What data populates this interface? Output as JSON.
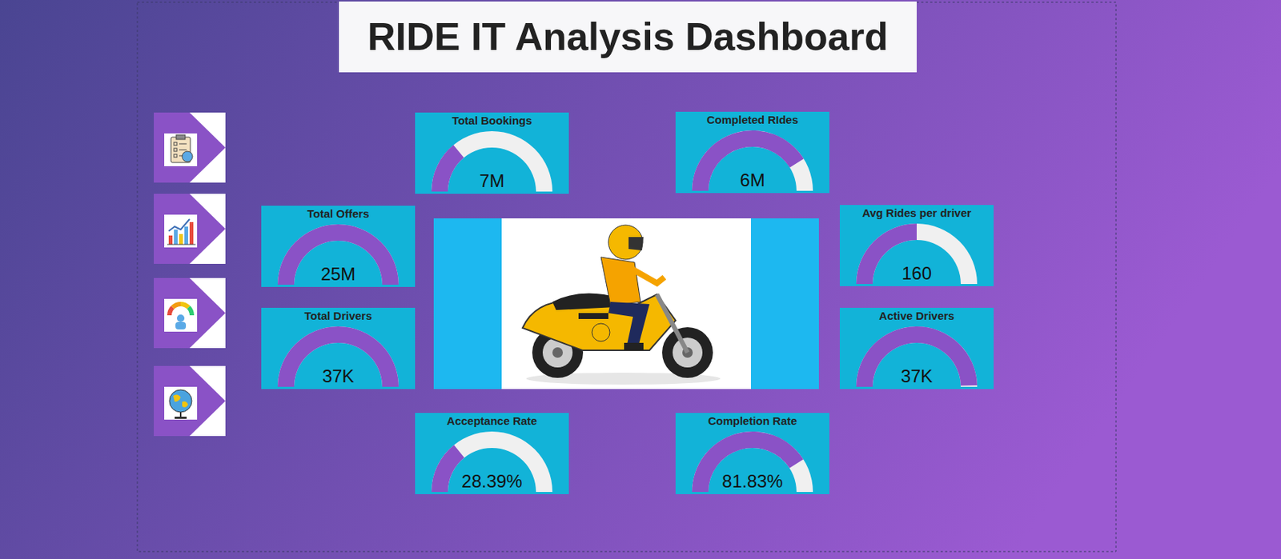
{
  "title": "RIDE IT Analysis Dashboard",
  "chart_data": [
    {
      "type": "gauge",
      "title": "Total Bookings",
      "values": [
        7000000
      ],
      "value_labels": [
        "7M"
      ],
      "ylim": [
        0,
        25000000
      ],
      "tick_labels": false,
      "data_labels": true,
      "color": "#8a52c6"
    },
    {
      "type": "gauge",
      "title": "Completed RIdes",
      "values": [
        6000000
      ],
      "value_labels": [
        "6M"
      ],
      "ylim": [
        0,
        7300000
      ],
      "tick_labels": false,
      "data_labels": true,
      "color": "#8a52c6"
    },
    {
      "type": "gauge",
      "title": "Total Offers",
      "values": [
        25000000
      ],
      "value_labels": [
        "25M"
      ],
      "ylim": [
        0,
        25000000
      ],
      "tick_labels": false,
      "data_labels": true,
      "color": "#8a52c6"
    },
    {
      "type": "gauge",
      "title": "Total Drivers",
      "values": [
        37000
      ],
      "value_labels": [
        "37K"
      ],
      "ylim": [
        0,
        37000
      ],
      "tick_labels": false,
      "data_labels": true,
      "color": "#8a52c6"
    },
    {
      "type": "gauge",
      "title": "Avg Rides per driver",
      "values": [
        160
      ],
      "ylim": [
        0,
        320
      ],
      "tick_labels": false,
      "data_labels": true,
      "color": "#8a52c6"
    },
    {
      "type": "gauge",
      "title": "Active Drivers",
      "values": [
        37000
      ],
      "value_labels": [
        "37K"
      ],
      "ylim": [
        0,
        37300
      ],
      "tick_labels": false,
      "data_labels": true,
      "color": "#8a52c6"
    },
    {
      "type": "gauge",
      "title": "Acceptance Rate",
      "values": [
        28.39
      ],
      "value_labels": [
        "28.39%"
      ],
      "ylim": [
        0,
        100
      ],
      "tick_labels": false,
      "data_labels": true,
      "color": "#8a52c6"
    },
    {
      "type": "gauge",
      "title": "Completion Rate",
      "values": [
        81.83
      ],
      "value_labels": [
        "81.83%"
      ],
      "ylim": [
        0,
        100
      ],
      "tick_labels": false,
      "data_labels": true,
      "color": "#8a52c6"
    }
  ]
}
